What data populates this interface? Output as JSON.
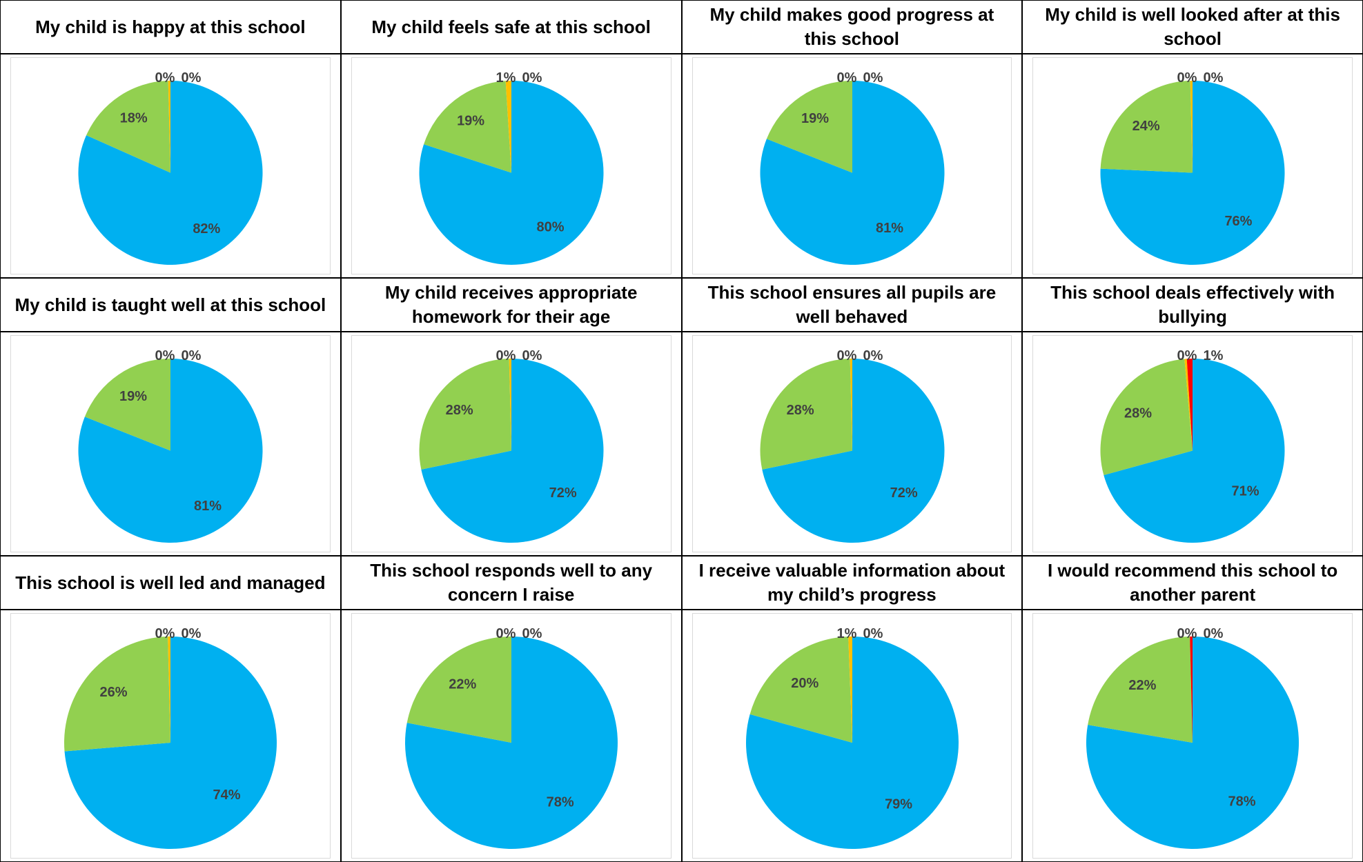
{
  "colors": {
    "strongly_agree": "#00b0f0",
    "agree": "#92d050",
    "disagree": "#ffc000",
    "strongly_disagree": "#ff0000"
  },
  "chart_data": [
    {
      "type": "pie",
      "title": "My child is happy at this school",
      "slices": [
        {
          "value": 82,
          "label": "82%",
          "color": "#00b0f0"
        },
        {
          "value": 18,
          "label": "18%",
          "color": "#92d050"
        },
        {
          "value": 0.4,
          "label": "0%",
          "color": "#ffc000"
        },
        {
          "value": 0,
          "label": "0%",
          "color": "#ff0000"
        }
      ]
    },
    {
      "type": "pie",
      "title": "My child feels safe at this school",
      "slices": [
        {
          "value": 80,
          "label": "80%",
          "color": "#00b0f0"
        },
        {
          "value": 19,
          "label": "19%",
          "color": "#92d050"
        },
        {
          "value": 1,
          "label": "1%",
          "color": "#ffc000"
        },
        {
          "value": 0,
          "label": "0%",
          "color": "#ff0000"
        }
      ]
    },
    {
      "type": "pie",
      "title": "My child makes good progress at this school",
      "slices": [
        {
          "value": 81,
          "label": "81%",
          "color": "#00b0f0"
        },
        {
          "value": 19,
          "label": "19%",
          "color": "#92d050"
        },
        {
          "value": 0,
          "label": "0%",
          "color": "#ffc000"
        },
        {
          "value": 0,
          "label": "0%",
          "color": "#ff0000"
        }
      ]
    },
    {
      "type": "pie",
      "title": "My child is well looked after at this school",
      "slices": [
        {
          "value": 76,
          "label": "76%",
          "color": "#00b0f0"
        },
        {
          "value": 24,
          "label": "24%",
          "color": "#92d050"
        },
        {
          "value": 0.4,
          "label": "0%",
          "color": "#ffc000"
        },
        {
          "value": 0,
          "label": "0%",
          "color": "#ff0000"
        }
      ]
    },
    {
      "type": "pie",
      "title": "My child is taught well at this school",
      "slices": [
        {
          "value": 81,
          "label": "81%",
          "color": "#00b0f0"
        },
        {
          "value": 19,
          "label": "19%",
          "color": "#92d050"
        },
        {
          "value": 0,
          "label": "0%",
          "color": "#ffc000"
        },
        {
          "value": 0,
          "label": "0%",
          "color": "#ff0000"
        }
      ]
    },
    {
      "type": "pie",
      "title": "My child receives appropriate homework for their age",
      "slices": [
        {
          "value": 72,
          "label": "72%",
          "color": "#00b0f0"
        },
        {
          "value": 28,
          "label": "28%",
          "color": "#92d050"
        },
        {
          "value": 0.4,
          "label": "0%",
          "color": "#ffc000"
        },
        {
          "value": 0,
          "label": "0%",
          "color": "#ff0000"
        }
      ]
    },
    {
      "type": "pie",
      "title": "This school ensures all pupils are well behaved",
      "slices": [
        {
          "value": 72,
          "label": "72%",
          "color": "#00b0f0"
        },
        {
          "value": 28,
          "label": "28%",
          "color": "#92d050"
        },
        {
          "value": 0.4,
          "label": "0%",
          "color": "#ffc000"
        },
        {
          "value": 0,
          "label": "0%",
          "color": "#ff0000"
        }
      ]
    },
    {
      "type": "pie",
      "title": "This school deals effectively with bullying",
      "slices": [
        {
          "value": 71,
          "label": "71%",
          "color": "#00b0f0"
        },
        {
          "value": 28,
          "label": "28%",
          "color": "#92d050"
        },
        {
          "value": 0.4,
          "label": "0%",
          "color": "#ffc000"
        },
        {
          "value": 1,
          "label": "1%",
          "color": "#ff0000"
        }
      ]
    },
    {
      "type": "pie",
      "title": "This school is well led and managed",
      "slices": [
        {
          "value": 74,
          "label": "74%",
          "color": "#00b0f0"
        },
        {
          "value": 26,
          "label": "26%",
          "color": "#92d050"
        },
        {
          "value": 0.4,
          "label": "0%",
          "color": "#ffc000"
        },
        {
          "value": 0,
          "label": "0%",
          "color": "#ff0000"
        }
      ]
    },
    {
      "type": "pie",
      "title": "This school responds well to any concern I raise",
      "slices": [
        {
          "value": 78,
          "label": "78%",
          "color": "#00b0f0"
        },
        {
          "value": 22,
          "label": "22%",
          "color": "#92d050"
        },
        {
          "value": 0,
          "label": "0%",
          "color": "#ffc000"
        },
        {
          "value": 0,
          "label": "0%",
          "color": "#ff0000"
        }
      ]
    },
    {
      "type": "pie",
      "title": "I receive valuable information about my child’s progress",
      "slices": [
        {
          "value": 79,
          "label": "79%",
          "color": "#00b0f0"
        },
        {
          "value": 20,
          "label": "20%",
          "color": "#92d050"
        },
        {
          "value": 0.6,
          "label": "1%",
          "color": "#ffc000"
        },
        {
          "value": 0,
          "label": "0%",
          "color": "#ff0000"
        }
      ]
    },
    {
      "type": "pie",
      "title": "I would recommend this school to another parent",
      "slices": [
        {
          "value": 78,
          "label": "78%",
          "color": "#00b0f0"
        },
        {
          "value": 22,
          "label": "22%",
          "color": "#92d050"
        },
        {
          "value": 0,
          "label": "0%",
          "color": "#ffc000"
        },
        {
          "value": 0.4,
          "label": "0%",
          "color": "#ff0000"
        }
      ]
    }
  ]
}
